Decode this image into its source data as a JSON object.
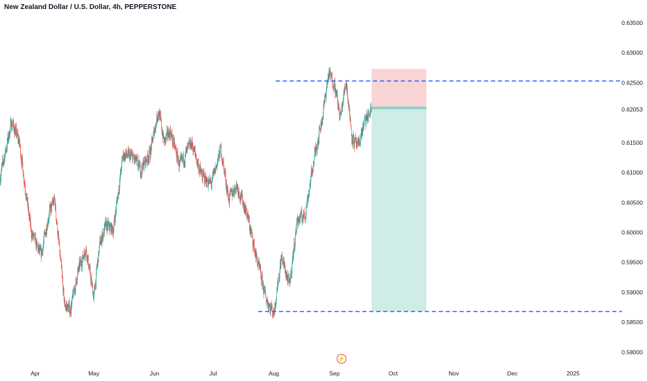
{
  "header": {
    "title": "New Zealand Dollar / U.S. Dollar, 4h, PEPPERSTONE"
  },
  "colors": {
    "up": "#26a69a",
    "down": "#ef5350",
    "level_line": "#2962ff",
    "stop_zone": "#f7c5c6",
    "target_zone": "#bfe6dd",
    "entry_line": "#8ed2c4",
    "axis_text": "#131722"
  },
  "chart_data": {
    "type": "candlestick",
    "title": "New Zealand Dollar / U.S. Dollar, 4h, PEPPERSTONE",
    "instrument": "New Zealand Dollar / U.S. Dollar",
    "interval": "4h",
    "source": "PEPPERSTONE",
    "ylim": [
      0.5775,
      0.6365
    ],
    "y_ticks": [
      "0.63500",
      "0.63000",
      "0.62500",
      "0.61500",
      "0.61000",
      "0.60500",
      "0.60000",
      "0.59500",
      "0.59000",
      "0.58500",
      "0.58000"
    ],
    "last_price": "0.62053",
    "x_ticks": [
      "Apr",
      "May",
      "Jun",
      "Jul",
      "Aug",
      "Sep",
      "Oct",
      "Nov",
      "Dec",
      "2025"
    ],
    "x_range": [
      "2024-03-14",
      "2025-01-26"
    ],
    "trend_path": [
      [
        "2024-03-14",
        0.609
      ],
      [
        "2024-03-20",
        0.6185
      ],
      [
        "2024-03-24",
        0.615
      ],
      [
        "2024-03-30",
        0.6
      ],
      [
        "2024-04-04",
        0.596
      ],
      [
        "2024-04-08",
        0.603
      ],
      [
        "2024-04-11",
        0.6055
      ],
      [
        "2024-04-16",
        0.588
      ],
      [
        "2024-04-19",
        0.587
      ],
      [
        "2024-04-23",
        0.5935
      ],
      [
        "2024-04-27",
        0.5975
      ],
      [
        "2024-05-01",
        0.589
      ],
      [
        "2024-05-04",
        0.598
      ],
      [
        "2024-05-07",
        0.601
      ],
      [
        "2024-05-11",
        0.6005
      ],
      [
        "2024-05-16",
        0.613
      ],
      [
        "2024-05-21",
        0.6125
      ],
      [
        "2024-05-25",
        0.6105
      ],
      [
        "2024-05-30",
        0.6135
      ],
      [
        "2024-06-03",
        0.6205
      ],
      [
        "2024-06-06",
        0.615
      ],
      [
        "2024-06-09",
        0.617
      ],
      [
        "2024-06-14",
        0.611
      ],
      [
        "2024-06-20",
        0.615
      ],
      [
        "2024-06-25",
        0.6095
      ],
      [
        "2024-06-30",
        0.608
      ],
      [
        "2024-07-05",
        0.614
      ],
      [
        "2024-07-09",
        0.6055
      ],
      [
        "2024-07-13",
        0.608
      ],
      [
        "2024-07-18",
        0.6035
      ],
      [
        "2024-07-23",
        0.596
      ],
      [
        "2024-07-28",
        0.589
      ],
      [
        "2024-08-01",
        0.5865
      ],
      [
        "2024-08-05",
        0.596
      ],
      [
        "2024-08-09",
        0.591
      ],
      [
        "2024-08-13",
        0.602
      ],
      [
        "2024-08-17",
        0.603
      ],
      [
        "2024-08-22",
        0.613
      ],
      [
        "2024-08-26",
        0.6195
      ],
      [
        "2024-08-29",
        0.6265
      ],
      [
        "2024-09-01",
        0.625
      ],
      [
        "2024-09-04",
        0.619
      ],
      [
        "2024-09-07",
        0.6255
      ],
      [
        "2024-09-10",
        0.616
      ],
      [
        "2024-09-13",
        0.614
      ],
      [
        "2024-09-16",
        0.618
      ],
      [
        "2024-09-20",
        0.6205
      ]
    ],
    "horizontal_levels": [
      {
        "price": 0.6253,
        "from": "2024-08-02",
        "to": "2025-01-26"
      },
      {
        "price": 0.5868,
        "from": "2024-07-24",
        "to": "2025-01-26"
      }
    ],
    "position": {
      "side": "short",
      "start": "2024-09-20",
      "end": "2024-10-18",
      "entry": 0.6208,
      "stop": 0.6273,
      "target": 0.5868
    }
  }
}
